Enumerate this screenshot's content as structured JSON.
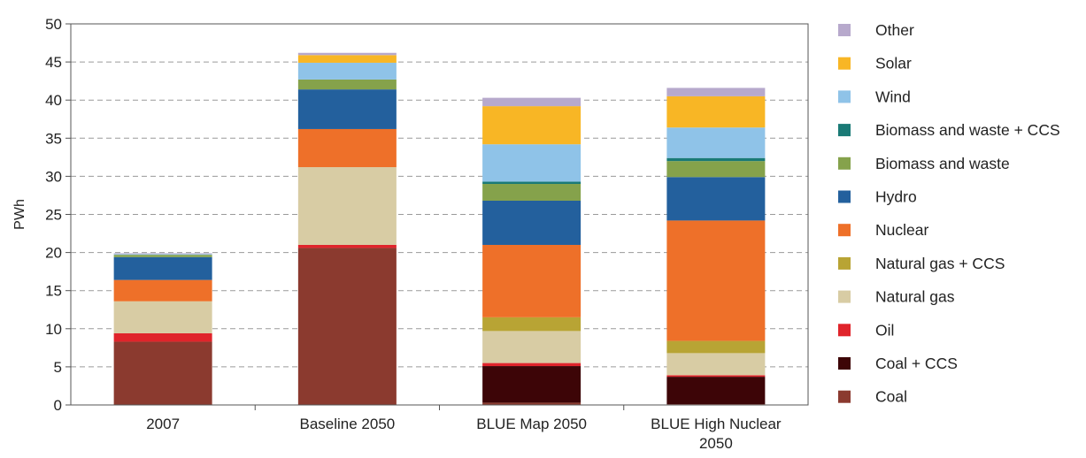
{
  "chart_data": {
    "type": "bar",
    "stacked": true,
    "ylabel": "PWh",
    "ylim": [
      0,
      50
    ],
    "yticks": [
      0,
      5,
      10,
      15,
      20,
      25,
      30,
      35,
      40,
      45,
      50
    ],
    "grid": true,
    "legend_position": "right",
    "categories": [
      [
        "2007"
      ],
      [
        "Baseline 2050"
      ],
      [
        "BLUE Map 2050"
      ],
      [
        "BLUE High Nuclear",
        "2050"
      ]
    ],
    "series": [
      {
        "name": "Coal",
        "color": "#8b3a2f",
        "values": [
          8.3,
          20.6,
          0.3,
          0.1
        ]
      },
      {
        "name": "Coal + CCS",
        "color": "#3d0507",
        "values": [
          0,
          0,
          4.8,
          3.6
        ]
      },
      {
        "name": "Oil",
        "color": "#e0242b",
        "values": [
          1.1,
          0.4,
          0.4,
          0.2
        ]
      },
      {
        "name": "Natural gas",
        "color": "#d8cca4",
        "values": [
          4.2,
          10.2,
          4.2,
          2.9
        ]
      },
      {
        "name": "Natural gas + CCS",
        "color": "#b8a434",
        "values": [
          0,
          0,
          1.8,
          1.6
        ]
      },
      {
        "name": "Nuclear",
        "color": "#ee7029",
        "values": [
          2.8,
          5.0,
          9.5,
          15.8
        ]
      },
      {
        "name": "Hydro",
        "color": "#23609d",
        "values": [
          3.0,
          5.2,
          5.8,
          5.7
        ]
      },
      {
        "name": "Biomass and waste",
        "color": "#85a24b",
        "values": [
          0.3,
          1.3,
          2.2,
          2.1
        ]
      },
      {
        "name": "Biomass and waste + CCS",
        "color": "#1a7a76",
        "values": [
          0,
          0,
          0.3,
          0.4
        ]
      },
      {
        "name": "Wind",
        "color": "#8fc3e8",
        "values": [
          0.1,
          2.2,
          4.9,
          4.0
        ]
      },
      {
        "name": "Solar",
        "color": "#f8b625",
        "values": [
          0,
          1.0,
          5.0,
          4.1
        ]
      },
      {
        "name": "Other",
        "color": "#b7a9cc",
        "values": [
          0.1,
          0.3,
          1.1,
          1.1
        ]
      }
    ]
  }
}
